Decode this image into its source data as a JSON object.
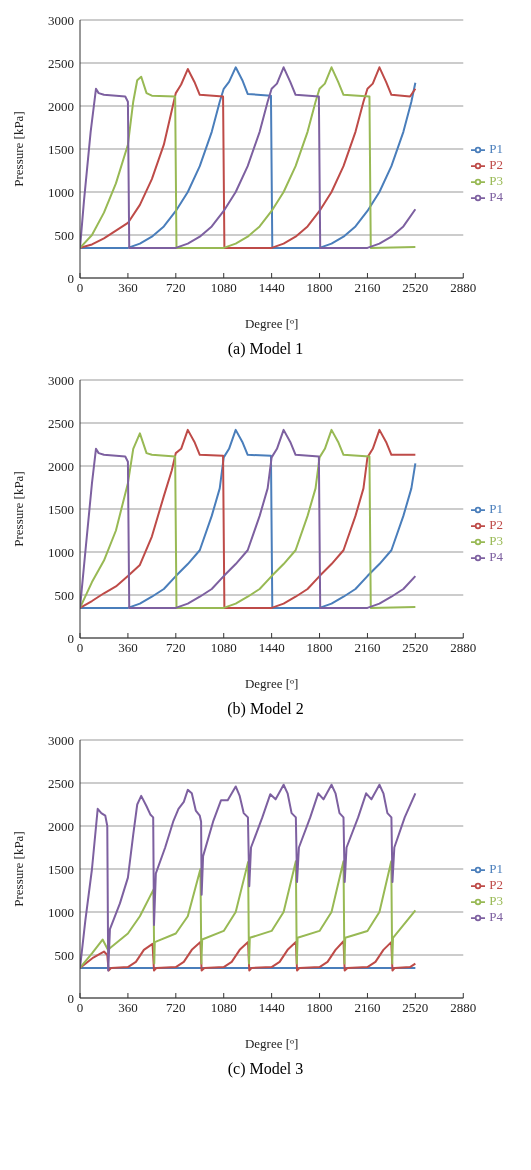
{
  "chart_data": [
    {
      "type": "line",
      "title": "(a) Model 1",
      "xlabel": "Degree [º]",
      "ylabel": "Pressure [kPa]",
      "xlim": [
        0,
        2880
      ],
      "xticks": [
        0,
        360,
        720,
        1080,
        1440,
        1800,
        2160,
        2520,
        2880
      ],
      "ylim": [
        0,
        3000
      ],
      "yticks": [
        0,
        500,
        1000,
        1500,
        2000,
        2500,
        3000
      ],
      "grid": "y",
      "legend": "right",
      "line_style": "solid",
      "series": [
        {
          "name": "P1",
          "color": "#4a7ebb",
          "x": [
            0,
            360,
            450,
            540,
            630,
            720,
            810,
            900,
            990,
            1050,
            1080,
            1120,
            1170,
            1220,
            1260,
            1435,
            1445,
            1800,
            1890,
            1980,
            2070,
            2160,
            2250,
            2340,
            2430,
            2490,
            2520
          ],
          "values": [
            350,
            350,
            400,
            480,
            600,
            780,
            1000,
            1300,
            1700,
            2050,
            2200,
            2280,
            2450,
            2300,
            2140,
            2120,
            350,
            350,
            400,
            480,
            600,
            780,
            1000,
            1300,
            1700,
            2050,
            2270
          ]
        },
        {
          "name": "P2",
          "color": "#be4b48",
          "x": [
            0,
            90,
            180,
            270,
            360,
            450,
            540,
            630,
            690,
            720,
            760,
            810,
            860,
            900,
            1075,
            1085,
            1440,
            1530,
            1620,
            1710,
            1800,
            1890,
            1980,
            2070,
            2130,
            2160,
            2200,
            2250,
            2300,
            2340,
            2480,
            2520
          ],
          "values": [
            350,
            390,
            460,
            550,
            640,
            850,
            1150,
            1550,
            1950,
            2150,
            2250,
            2430,
            2280,
            2130,
            2110,
            350,
            350,
            400,
            480,
            600,
            780,
            1000,
            1300,
            1700,
            2050,
            2200,
            2260,
            2450,
            2280,
            2130,
            2110,
            2200
          ]
        },
        {
          "name": "P3",
          "color": "#98b954",
          "x": [
            0,
            90,
            180,
            270,
            360,
            400,
            430,
            460,
            500,
            540,
            715,
            725,
            1080,
            1170,
            1260,
            1350,
            1440,
            1530,
            1620,
            1710,
            1770,
            1800,
            1840,
            1890,
            1940,
            1980,
            2175,
            2185,
            2520
          ],
          "values": [
            350,
            500,
            760,
            1100,
            1550,
            2050,
            2300,
            2340,
            2150,
            2120,
            2110,
            350,
            350,
            400,
            480,
            600,
            780,
            1000,
            1300,
            1700,
            2050,
            2200,
            2260,
            2450,
            2280,
            2130,
            2110,
            350,
            360
          ]
        },
        {
          "name": "P4",
          "color": "#7d60a0",
          "x": [
            0,
            30,
            80,
            120,
            140,
            180,
            340,
            360,
            370,
            720,
            810,
            900,
            990,
            1080,
            1170,
            1260,
            1350,
            1410,
            1440,
            1480,
            1530,
            1580,
            1620,
            1795,
            1805,
            2160,
            2250,
            2340,
            2430,
            2520
          ],
          "values": [
            350,
            900,
            1700,
            2200,
            2150,
            2130,
            2110,
            2050,
            350,
            350,
            400,
            480,
            600,
            780,
            1000,
            1300,
            1700,
            2050,
            2200,
            2260,
            2450,
            2280,
            2130,
            2110,
            350,
            350,
            400,
            480,
            600,
            800
          ]
        }
      ]
    },
    {
      "type": "line",
      "title": "(b) Model 2",
      "xlabel": "Degree [º]",
      "ylabel": "Pressure [kPa]",
      "xlim": [
        0,
        2880
      ],
      "xticks": [
        0,
        360,
        720,
        1080,
        1440,
        1800,
        2160,
        2520,
        2880
      ],
      "ylim": [
        0,
        3000
      ],
      "yticks": [
        0,
        500,
        1000,
        1500,
        2000,
        2500,
        3000
      ],
      "grid": "y",
      "legend": "right",
      "line_style": "solid",
      "series": [
        {
          "name": "P1",
          "color": "#4a7ebb",
          "x": [
            0,
            360,
            450,
            540,
            630,
            720,
            810,
            900,
            990,
            1050,
            1080,
            1120,
            1170,
            1220,
            1260,
            1435,
            1445,
            1800,
            1890,
            1980,
            2070,
            2160,
            2250,
            2340,
            2430,
            2490,
            2520
          ],
          "values": [
            350,
            350,
            400,
            480,
            570,
            720,
            860,
            1020,
            1420,
            1740,
            2100,
            2200,
            2420,
            2280,
            2130,
            2120,
            350,
            350,
            400,
            480,
            570,
            720,
            860,
            1020,
            1420,
            1740,
            2030
          ]
        },
        {
          "name": "P2",
          "color": "#be4b48",
          "x": [
            0,
            90,
            180,
            270,
            360,
            450,
            540,
            630,
            690,
            720,
            760,
            810,
            860,
            900,
            1075,
            1085,
            1440,
            1530,
            1620,
            1710,
            1800,
            1890,
            1980,
            2070,
            2130,
            2160,
            2200,
            2250,
            2300,
            2340,
            2520
          ],
          "values": [
            350,
            430,
            520,
            600,
            720,
            850,
            1180,
            1650,
            1950,
            2150,
            2200,
            2420,
            2280,
            2130,
            2120,
            350,
            350,
            400,
            480,
            570,
            720,
            860,
            1020,
            1420,
            1740,
            2100,
            2200,
            2420,
            2280,
            2130,
            2130
          ]
        },
        {
          "name": "P3",
          "color": "#98b954",
          "x": [
            0,
            90,
            180,
            270,
            360,
            400,
            450,
            500,
            540,
            715,
            725,
            1080,
            1170,
            1260,
            1350,
            1440,
            1530,
            1620,
            1710,
            1770,
            1800,
            1840,
            1890,
            1940,
            1980,
            2175,
            2185,
            2520
          ],
          "values": [
            350,
            650,
            900,
            1250,
            1800,
            2200,
            2380,
            2150,
            2130,
            2110,
            350,
            350,
            400,
            480,
            570,
            720,
            860,
            1020,
            1420,
            1740,
            2100,
            2200,
            2420,
            2280,
            2130,
            2110,
            350,
            360
          ]
        },
        {
          "name": "P4",
          "color": "#7d60a0",
          "x": [
            0,
            40,
            90,
            120,
            140,
            180,
            340,
            360,
            370,
            720,
            810,
            900,
            990,
            1080,
            1170,
            1260,
            1350,
            1410,
            1440,
            1480,
            1530,
            1580,
            1620,
            1795,
            1805,
            2160,
            2250,
            2340,
            2430,
            2520
          ],
          "values": [
            350,
            1000,
            1800,
            2200,
            2150,
            2130,
            2110,
            2050,
            350,
            350,
            400,
            480,
            570,
            720,
            860,
            1020,
            1420,
            1740,
            2100,
            2200,
            2420,
            2280,
            2130,
            2110,
            350,
            350,
            400,
            480,
            570,
            720
          ]
        }
      ]
    },
    {
      "type": "line",
      "title": "(c) Model 3",
      "xlabel": "Degree [º]",
      "ylabel": "Pressure [kPa]",
      "xlim": [
        0,
        2880
      ],
      "xticks": [
        0,
        360,
        720,
        1080,
        1440,
        1800,
        2160,
        2520,
        2880
      ],
      "ylim": [
        0,
        3000
      ],
      "yticks": [
        0,
        500,
        1000,
        1500,
        2000,
        2500,
        3000
      ],
      "grid": "y",
      "legend": "right",
      "line_style": "solid",
      "series": [
        {
          "name": "P1",
          "color": "#4a7ebb",
          "x": [
            0,
            720,
            1440,
            2160,
            2520
          ],
          "values": [
            350,
            350,
            350,
            350,
            350
          ]
        },
        {
          "name": "P2",
          "color": "#be4b48",
          "x": [
            0,
            100,
            180,
            205,
            215,
            235,
            360,
            420,
            480,
            545,
            556,
            575,
            720,
            780,
            840,
            905,
            914,
            935,
            1080,
            1140,
            1200,
            1263,
            1272,
            1290,
            1440,
            1500,
            1560,
            1622,
            1631,
            1650,
            1800,
            1860,
            1920,
            1980,
            1989,
            2010,
            2160,
            2220,
            2280,
            2339,
            2348,
            2365,
            2480,
            2520
          ],
          "values": [
            350,
            470,
            540,
            500,
            320,
            350,
            360,
            420,
            560,
            630,
            320,
            350,
            360,
            420,
            560,
            650,
            320,
            350,
            360,
            420,
            560,
            650,
            320,
            350,
            360,
            420,
            560,
            650,
            320,
            350,
            360,
            420,
            560,
            660,
            320,
            350,
            360,
            420,
            560,
            650,
            320,
            350,
            360,
            400
          ]
        },
        {
          "name": "P3",
          "color": "#98b954",
          "x": [
            0,
            90,
            170,
            210,
            360,
            450,
            552,
            558,
            562,
            720,
            810,
            905,
            912,
            918,
            1080,
            1170,
            1263,
            1270,
            1276,
            1440,
            1530,
            1622,
            1629,
            1635,
            1800,
            1890,
            1980,
            1987,
            1993,
            2160,
            2250,
            2339,
            2346,
            2352,
            2520
          ],
          "values": [
            350,
            520,
            680,
            560,
            750,
            950,
            1260,
            400,
            650,
            750,
            950,
            1500,
            400,
            680,
            780,
            1000,
            1580,
            400,
            700,
            780,
            1000,
            1590,
            400,
            700,
            780,
            1000,
            1590,
            400,
            700,
            780,
            1000,
            1590,
            400,
            700,
            1020
          ]
        },
        {
          "name": "P4",
          "color": "#7d60a0",
          "x": [
            0,
            40,
            90,
            133,
            160,
            190,
            205,
            212,
            225,
            300,
            360,
            400,
            430,
            460,
            500,
            530,
            550,
            556,
            570,
            640,
            700,
            740,
            780,
            810,
            840,
            870,
            900,
            910,
            914,
            925,
            1000,
            1060,
            1110,
            1170,
            1200,
            1230,
            1262,
            1272,
            1285,
            1370,
            1430,
            1470,
            1530,
            1560,
            1590,
            1622,
            1631,
            1645,
            1730,
            1790,
            1830,
            1890,
            1920,
            1950,
            1980,
            1989,
            2003,
            2090,
            2150,
            2190,
            2250,
            2280,
            2310,
            2340,
            2348,
            2362,
            2440,
            2520
          ],
          "values": [
            350,
            900,
            1500,
            2200,
            2150,
            2120,
            2000,
            320,
            800,
            1100,
            1400,
            1900,
            2250,
            2350,
            2230,
            2130,
            2100,
            850,
            1450,
            1750,
            2050,
            2200,
            2280,
            2420,
            2380,
            2180,
            2120,
            2050,
            1200,
            1650,
            2050,
            2300,
            2300,
            2460,
            2350,
            2150,
            2100,
            1300,
            1750,
            2100,
            2370,
            2310,
            2480,
            2380,
            2150,
            2100,
            1350,
            1750,
            2100,
            2380,
            2310,
            2480,
            2380,
            2150,
            2100,
            1350,
            1750,
            2100,
            2380,
            2310,
            2480,
            2380,
            2150,
            2100,
            1350,
            1750,
            2100,
            2380
          ]
        }
      ]
    }
  ]
}
